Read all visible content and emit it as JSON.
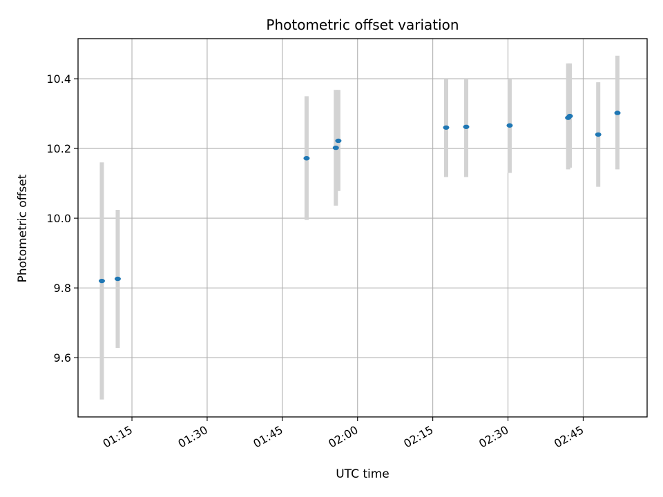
{
  "chart_data": {
    "type": "scatter",
    "title": "Photometric offset variation",
    "xlabel": "UTC time",
    "ylabel": "Photometric offset",
    "xlim": [
      "01:04:15",
      "02:57:45"
    ],
    "ylim": [
      9.43,
      10.515
    ],
    "xticks": [
      "01:15",
      "01:30",
      "01:45",
      "02:00",
      "02:15",
      "02:30",
      "02:45"
    ],
    "yticks": [
      9.6,
      9.8,
      10.0,
      10.2,
      10.4
    ],
    "yticklabels": [
      "9.6",
      "9.8",
      "10.0",
      "10.2",
      "10.4"
    ],
    "grid": true,
    "marker_color": "#1f77b4",
    "errorbar_color": "#d3d3d3",
    "points": [
      {
        "x": "01:09:00",
        "y": 9.82,
        "ylow": 9.48,
        "yhigh": 10.16
      },
      {
        "x": "01:12:10",
        "y": 9.826,
        "ylow": 9.628,
        "yhigh": 10.024
      },
      {
        "x": "01:49:50",
        "y": 10.172,
        "ylow": 9.995,
        "yhigh": 10.35
      },
      {
        "x": "01:55:40",
        "y": 10.202,
        "ylow": 10.036,
        "yhigh": 10.368
      },
      {
        "x": "01:56:10",
        "y": 10.222,
        "ylow": 10.078,
        "yhigh": 10.368
      },
      {
        "x": "02:17:40",
        "y": 10.26,
        "ylow": 10.118,
        "yhigh": 10.4
      },
      {
        "x": "02:21:40",
        "y": 10.262,
        "ylow": 10.118,
        "yhigh": 10.402
      },
      {
        "x": "02:30:20",
        "y": 10.266,
        "ylow": 10.13,
        "yhigh": 10.4
      },
      {
        "x": "02:42:00",
        "y": 10.288,
        "ylow": 10.14,
        "yhigh": 10.444
      },
      {
        "x": "02:42:20",
        "y": 10.293,
        "ylow": 10.145,
        "yhigh": 10.444
      },
      {
        "x": "02:48:00",
        "y": 10.24,
        "ylow": 10.09,
        "yhigh": 10.39
      },
      {
        "x": "02:51:50",
        "y": 10.302,
        "ylow": 10.14,
        "yhigh": 10.466
      }
    ]
  }
}
